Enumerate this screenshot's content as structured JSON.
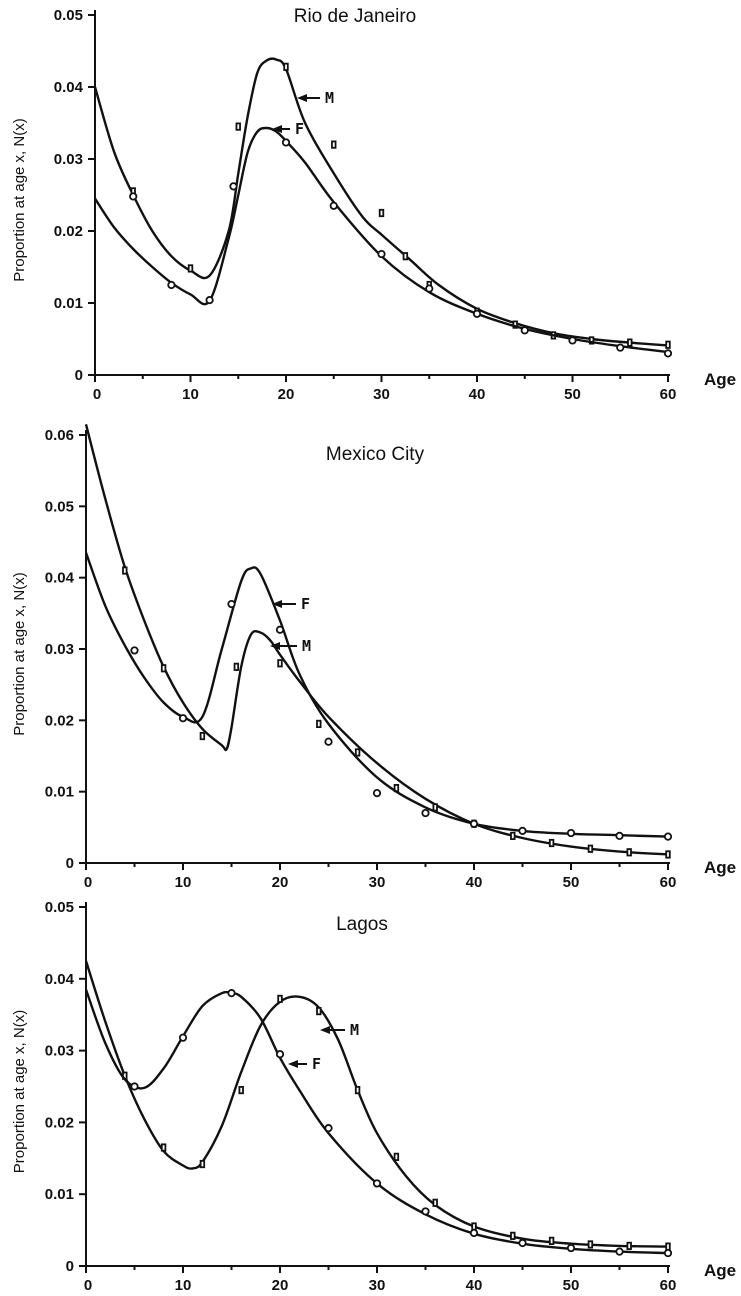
{
  "chart_data": [
    {
      "type": "line",
      "title": "Rio de Janeiro",
      "xlabel": "Age",
      "ylabel": "Proportion at age x, N(x)",
      "xlim": [
        0,
        60
      ],
      "ylim": [
        0,
        0.05
      ],
      "xticks": [
        0,
        10,
        20,
        30,
        40,
        50,
        60
      ],
      "yticks": [
        0,
        0.01,
        0.02,
        0.03,
        0.04,
        0.05
      ],
      "ytick_labels": [
        "0",
        "0.01",
        "0.02",
        "0.03",
        "0.04",
        "0.05"
      ],
      "series": [
        {
          "name": "M",
          "curve": [
            [
              0,
              0.04
            ],
            [
              2,
              0.031
            ],
            [
              4,
              0.025
            ],
            [
              6,
              0.02
            ],
            [
              8,
              0.0165
            ],
            [
              10,
              0.0145
            ],
            [
              12,
              0.0138
            ],
            [
              14,
              0.02
            ],
            [
              15,
              0.028
            ],
            [
              16,
              0.036
            ],
            [
              17,
              0.042
            ],
            [
              18,
              0.0437
            ],
            [
              19,
              0.0438
            ],
            [
              20,
              0.0425
            ],
            [
              22,
              0.035
            ],
            [
              25,
              0.028
            ],
            [
              28,
              0.022
            ],
            [
              30,
              0.0195
            ],
            [
              33,
              0.016
            ],
            [
              36,
              0.0125
            ],
            [
              40,
              0.0092
            ],
            [
              44,
              0.0072
            ],
            [
              48,
              0.0058
            ],
            [
              52,
              0.005
            ],
            [
              56,
              0.0045
            ],
            [
              60,
              0.0041
            ]
          ],
          "points": [
            [
              4,
              0.0255
            ],
            [
              10,
              0.0148
            ],
            [
              15,
              0.0345
            ],
            [
              20,
              0.0428
            ],
            [
              25,
              0.032
            ],
            [
              30,
              0.0225
            ],
            [
              32.5,
              0.0165
            ],
            [
              35,
              0.0125
            ],
            [
              40,
              0.0088
            ],
            [
              44,
              0.007
            ],
            [
              48,
              0.0055
            ],
            [
              52,
              0.0048
            ],
            [
              56,
              0.0045
            ],
            [
              60,
              0.0042
            ]
          ]
        },
        {
          "name": "F",
          "curve": [
            [
              0,
              0.0245
            ],
            [
              2,
              0.0205
            ],
            [
              4,
              0.0175
            ],
            [
              6,
              0.015
            ],
            [
              8,
              0.0128
            ],
            [
              10,
              0.0112
            ],
            [
              12,
              0.0103
            ],
            [
              14,
              0.019
            ],
            [
              15,
              0.025
            ],
            [
              16,
              0.031
            ],
            [
              17,
              0.0338
            ],
            [
              18,
              0.0343
            ],
            [
              19,
              0.0338
            ],
            [
              20,
              0.0325
            ],
            [
              22,
              0.0295
            ],
            [
              25,
              0.024
            ],
            [
              30,
              0.0165
            ],
            [
              35,
              0.0115
            ],
            [
              40,
              0.0085
            ],
            [
              45,
              0.0064
            ],
            [
              50,
              0.005
            ],
            [
              55,
              0.004
            ],
            [
              60,
              0.0032
            ]
          ],
          "points": [
            [
              4,
              0.0248
            ],
            [
              8,
              0.0125
            ],
            [
              12,
              0.0104
            ],
            [
              14.5,
              0.0262
            ],
            [
              20,
              0.0323
            ],
            [
              25,
              0.0235
            ],
            [
              30,
              0.0168
            ],
            [
              35,
              0.012
            ],
            [
              40,
              0.0085
            ],
            [
              45,
              0.0062
            ],
            [
              50,
              0.0048
            ],
            [
              55,
              0.0038
            ],
            [
              60,
              0.003
            ]
          ]
        }
      ],
      "annotations": [
        "M",
        "F"
      ]
    },
    {
      "type": "line",
      "title": "Mexico City",
      "xlabel": "Age",
      "ylabel": "Proportion at age x, N(x)",
      "xlim": [
        0,
        60
      ],
      "ylim": [
        0,
        0.06
      ],
      "xticks": [
        0,
        10,
        20,
        30,
        40,
        50,
        60
      ],
      "yticks": [
        0,
        0.01,
        0.02,
        0.03,
        0.04,
        0.05,
        0.06
      ],
      "ytick_labels": [
        "0",
        "0.01",
        "0.02",
        "0.03",
        "0.04",
        "0.05",
        "0.06"
      ],
      "series": [
        {
          "name": "M",
          "curve": [
            [
              0,
              0.0615
            ],
            [
              2,
              0.051
            ],
            [
              4,
              0.0415
            ],
            [
              6,
              0.034
            ],
            [
              8,
              0.0275
            ],
            [
              10,
              0.0225
            ],
            [
              12,
              0.0188
            ],
            [
              14,
              0.0165
            ],
            [
              14.5,
              0.016
            ],
            [
              15,
              0.019
            ],
            [
              16,
              0.0275
            ],
            [
              17,
              0.032
            ],
            [
              18,
              0.0323
            ],
            [
              19,
              0.0312
            ],
            [
              20,
              0.0292
            ],
            [
              22,
              0.0255
            ],
            [
              25,
              0.0205
            ],
            [
              30,
              0.014
            ],
            [
              35,
              0.009
            ],
            [
              40,
              0.0055
            ],
            [
              45,
              0.0035
            ],
            [
              50,
              0.0023
            ],
            [
              55,
              0.0016
            ],
            [
              60,
              0.0012
            ]
          ],
          "points": [
            [
              4,
              0.041
            ],
            [
              8,
              0.0273
            ],
            [
              12,
              0.0178
            ],
            [
              15.5,
              0.0275
            ],
            [
              20,
              0.028
            ],
            [
              24,
              0.0195
            ],
            [
              28,
              0.0155
            ],
            [
              32,
              0.0105
            ],
            [
              36,
              0.0078
            ],
            [
              40,
              0.0055
            ],
            [
              44,
              0.0038
            ],
            [
              48,
              0.0028
            ],
            [
              52,
              0.002
            ],
            [
              56,
              0.0015
            ],
            [
              60,
              0.0012
            ]
          ]
        },
        {
          "name": "F",
          "curve": [
            [
              0,
              0.0435
            ],
            [
              2,
              0.036
            ],
            [
              4,
              0.0305
            ],
            [
              6,
              0.026
            ],
            [
              8,
              0.0225
            ],
            [
              10,
              0.0205
            ],
            [
              12,
              0.0205
            ],
            [
              14,
              0.03
            ],
            [
              16,
              0.0395
            ],
            [
              17,
              0.0413
            ],
            [
              18,
              0.0405
            ],
            [
              20,
              0.034
            ],
            [
              22,
              0.0265
            ],
            [
              25,
              0.0195
            ],
            [
              30,
              0.012
            ],
            [
              35,
              0.0078
            ],
            [
              40,
              0.0055
            ],
            [
              45,
              0.0045
            ],
            [
              50,
              0.0041
            ],
            [
              55,
              0.0039
            ],
            [
              60,
              0.0037
            ]
          ],
          "points": [
            [
              5,
              0.0298
            ],
            [
              10,
              0.0203
            ],
            [
              15,
              0.0363
            ],
            [
              20,
              0.0327
            ],
            [
              25,
              0.017
            ],
            [
              30,
              0.0098
            ],
            [
              35,
              0.007
            ],
            [
              40,
              0.0055
            ],
            [
              45,
              0.0045
            ],
            [
              50,
              0.0042
            ],
            [
              55,
              0.0038
            ],
            [
              60,
              0.0037
            ]
          ]
        }
      ],
      "annotations": [
        "F",
        "M"
      ]
    },
    {
      "type": "line",
      "title": "Lagos",
      "xlabel": "Age",
      "ylabel": "Proportion at age x, N(x)",
      "xlim": [
        0,
        60
      ],
      "ylim": [
        0,
        0.05
      ],
      "xticks": [
        0,
        10,
        20,
        30,
        40,
        50,
        60
      ],
      "yticks": [
        0,
        0.01,
        0.02,
        0.03,
        0.04,
        0.05
      ],
      "ytick_labels": [
        "0",
        "0.01",
        "0.02",
        "0.03",
        "0.04",
        "0.05"
      ],
      "series": [
        {
          "name": "M",
          "curve": [
            [
              0,
              0.0425
            ],
            [
              2,
              0.034
            ],
            [
              4,
              0.0265
            ],
            [
              6,
              0.0205
            ],
            [
              8,
              0.016
            ],
            [
              10,
              0.014
            ],
            [
              11,
              0.0136
            ],
            [
              12,
              0.0145
            ],
            [
              14,
              0.0195
            ],
            [
              16,
              0.027
            ],
            [
              18,
              0.0335
            ],
            [
              20,
              0.0368
            ],
            [
              22,
              0.0375
            ],
            [
              24,
              0.036
            ],
            [
              26,
              0.0315
            ],
            [
              28,
              0.0245
            ],
            [
              30,
              0.0185
            ],
            [
              33,
              0.0125
            ],
            [
              36,
              0.0085
            ],
            [
              40,
              0.0055
            ],
            [
              45,
              0.0038
            ],
            [
              50,
              0.0031
            ],
            [
              55,
              0.0028
            ],
            [
              60,
              0.0027
            ]
          ],
          "points": [
            [
              4,
              0.0265
            ],
            [
              8,
              0.0165
            ],
            [
              12,
              0.0142
            ],
            [
              16,
              0.0245
            ],
            [
              20,
              0.0372
            ],
            [
              24,
              0.0355
            ],
            [
              28,
              0.0245
            ],
            [
              32,
              0.0152
            ],
            [
              36,
              0.0088
            ],
            [
              40,
              0.0055
            ],
            [
              44,
              0.0042
            ],
            [
              48,
              0.0035
            ],
            [
              52,
              0.003
            ],
            [
              56,
              0.0028
            ],
            [
              60,
              0.0027
            ]
          ]
        },
        {
          "name": "F",
          "curve": [
            [
              0,
              0.0385
            ],
            [
              2,
              0.031
            ],
            [
              4,
              0.026
            ],
            [
              6,
              0.0248
            ],
            [
              8,
              0.0275
            ],
            [
              10,
              0.032
            ],
            [
              12,
              0.0362
            ],
            [
              14,
              0.038
            ],
            [
              15,
              0.038
            ],
            [
              16,
              0.0375
            ],
            [
              18,
              0.0345
            ],
            [
              20,
              0.029
            ],
            [
              22,
              0.0245
            ],
            [
              25,
              0.0185
            ],
            [
              30,
              0.0115
            ],
            [
              35,
              0.0072
            ],
            [
              40,
              0.0045
            ],
            [
              45,
              0.0031
            ],
            [
              50,
              0.0024
            ],
            [
              55,
              0.002
            ],
            [
              60,
              0.0018
            ]
          ],
          "points": [
            [
              5,
              0.025
            ],
            [
              10,
              0.0318
            ],
            [
              15,
              0.038
            ],
            [
              20,
              0.0295
            ],
            [
              25,
              0.0192
            ],
            [
              30,
              0.0115
            ],
            [
              35,
              0.0076
            ],
            [
              40,
              0.0046
            ],
            [
              45,
              0.0032
            ],
            [
              50,
              0.0025
            ],
            [
              55,
              0.002
            ],
            [
              60,
              0.0018
            ]
          ]
        }
      ],
      "annotations": [
        "M",
        "F"
      ]
    }
  ]
}
